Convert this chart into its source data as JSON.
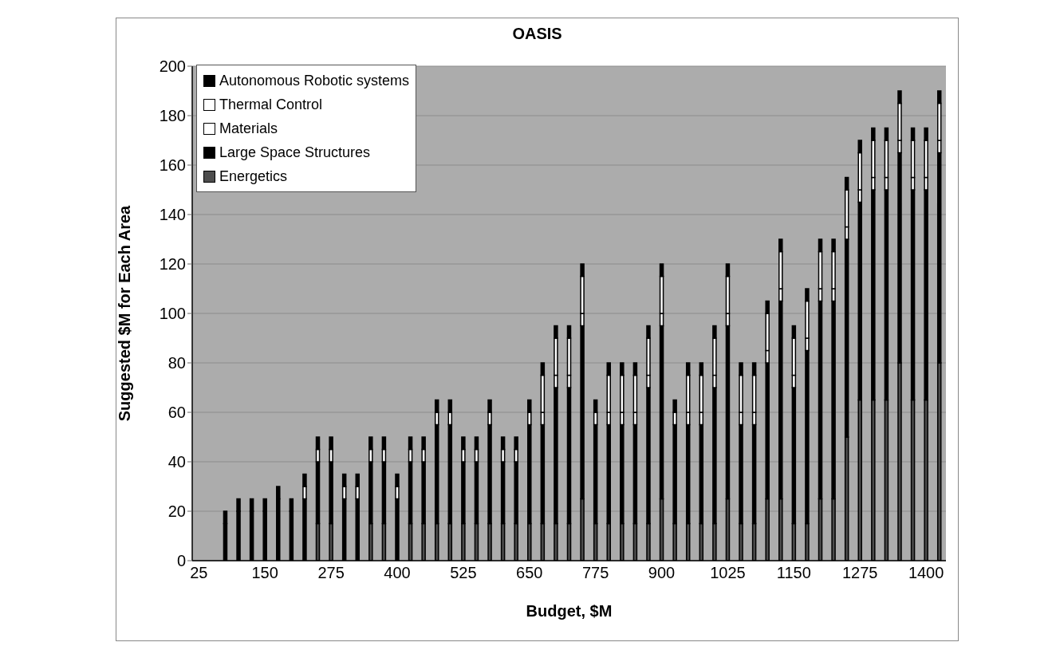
{
  "chart_data": {
    "type": "bar",
    "title": "OASIS",
    "xlabel": "Budget, $M",
    "ylabel": "Suggested $M for Each Area",
    "categories": [
      "25",
      null,
      null,
      null,
      null,
      "150",
      null,
      null,
      null,
      null,
      "275",
      null,
      null,
      null,
      null,
      "400",
      null,
      null,
      null,
      null,
      "525",
      null,
      null,
      null,
      null,
      "650",
      null,
      null,
      null,
      null,
      "775",
      null,
      null,
      null,
      null,
      "900",
      null,
      null,
      null,
      null,
      "1025",
      null,
      null,
      null,
      null,
      "1150",
      null,
      null,
      null,
      null,
      "1275",
      null,
      null,
      null,
      null,
      "1400",
      null
    ],
    "stacked": true,
    "series": [
      {
        "name": "Energetics",
        "color": "#4d4d4d",
        "values": [
          null,
          null,
          0,
          0,
          0,
          0,
          0,
          0,
          0,
          15,
          15,
          0,
          0,
          15,
          15,
          0,
          15,
          15,
          15,
          15,
          15,
          15,
          15,
          15,
          15,
          15,
          15,
          15,
          15,
          25,
          15,
          15,
          15,
          15,
          15,
          25,
          15,
          15,
          15,
          15,
          25,
          15,
          15,
          25,
          25,
          15,
          15,
          25,
          25,
          50,
          65,
          65,
          65,
          80,
          65,
          65,
          80
        ]
      },
      {
        "name": "Large Space Structures",
        "color": "#000000",
        "values": [
          null,
          null,
          15,
          20,
          20,
          20,
          25,
          20,
          25,
          25,
          25,
          25,
          25,
          25,
          25,
          25,
          25,
          25,
          40,
          40,
          25,
          25,
          40,
          25,
          25,
          40,
          40,
          55,
          55,
          70,
          40,
          40,
          40,
          40,
          55,
          70,
          40,
          40,
          40,
          55,
          70,
          40,
          40,
          55,
          80,
          55,
          70,
          80,
          80,
          80,
          80,
          85,
          85,
          85,
          85,
          85,
          85
        ]
      },
      {
        "name": "Materials",
        "color": "#ffffff",
        "values": [
          null,
          null,
          0,
          0,
          0,
          0,
          0,
          0,
          5,
          5,
          5,
          5,
          5,
          5,
          5,
          5,
          5,
          5,
          5,
          5,
          5,
          5,
          5,
          5,
          5,
          5,
          5,
          5,
          5,
          5,
          5,
          5,
          5,
          5,
          5,
          5,
          5,
          5,
          5,
          5,
          5,
          5,
          5,
          5,
          5,
          5,
          5,
          5,
          5,
          5,
          5,
          5,
          5,
          5,
          5,
          5,
          5
        ]
      },
      {
        "name": "Thermal Control",
        "color": "#ffffff",
        "values": [
          null,
          null,
          0,
          0,
          0,
          0,
          0,
          0,
          0,
          0,
          0,
          0,
          0,
          0,
          0,
          0,
          0,
          0,
          0,
          0,
          0,
          0,
          0,
          0,
          0,
          0,
          15,
          15,
          15,
          15,
          0,
          15,
          15,
          15,
          15,
          15,
          0,
          15,
          15,
          15,
          15,
          15,
          15,
          15,
          15,
          15,
          15,
          15,
          15,
          15,
          15,
          15,
          15,
          15,
          15,
          15,
          15
        ]
      },
      {
        "name": "Autonomous Robotic systems",
        "color": "#000000",
        "values": [
          null,
          null,
          5,
          5,
          5,
          5,
          5,
          5,
          5,
          5,
          5,
          5,
          5,
          5,
          5,
          5,
          5,
          5,
          5,
          5,
          5,
          5,
          5,
          5,
          5,
          5,
          5,
          5,
          5,
          5,
          5,
          5,
          5,
          5,
          5,
          5,
          5,
          5,
          5,
          5,
          5,
          5,
          5,
          5,
          5,
          5,
          5,
          5,
          5,
          5,
          5,
          5,
          5,
          5,
          5,
          5,
          5
        ]
      }
    ],
    "ylim": [
      0,
      200
    ],
    "yticks": [
      0,
      20,
      40,
      60,
      80,
      100,
      120,
      140,
      160,
      180,
      200
    ],
    "grid": "y",
    "legend": "top left"
  }
}
